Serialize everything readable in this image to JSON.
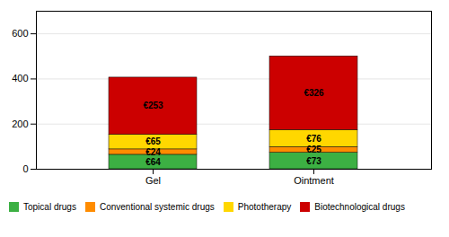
{
  "chart_data": {
    "type": "bar",
    "stacked": true,
    "categories": [
      "Gel",
      "Ointment"
    ],
    "series": [
      {
        "name": "Topical drugs",
        "color": "#3CB043",
        "values": [
          64,
          73
        ],
        "value_labels": [
          "€64",
          "€73"
        ]
      },
      {
        "name": "Conventional systemic drugs",
        "color": "#FF8C00",
        "values": [
          24,
          25
        ],
        "value_labels": [
          "€24",
          "€25"
        ]
      },
      {
        "name": "Phototherapy",
        "color": "#FFD700",
        "values": [
          65,
          76
        ],
        "value_labels": [
          "€65",
          "€76"
        ]
      },
      {
        "name": "Biotechnological drugs",
        "color": "#CC0000",
        "values": [
          253,
          326
        ],
        "value_labels": [
          "€253",
          "€326"
        ]
      }
    ],
    "ylim": [
      0,
      700
    ],
    "yticks": [
      0,
      200,
      400,
      600
    ],
    "grid": true,
    "data_labels": true,
    "legend": "lower left"
  }
}
